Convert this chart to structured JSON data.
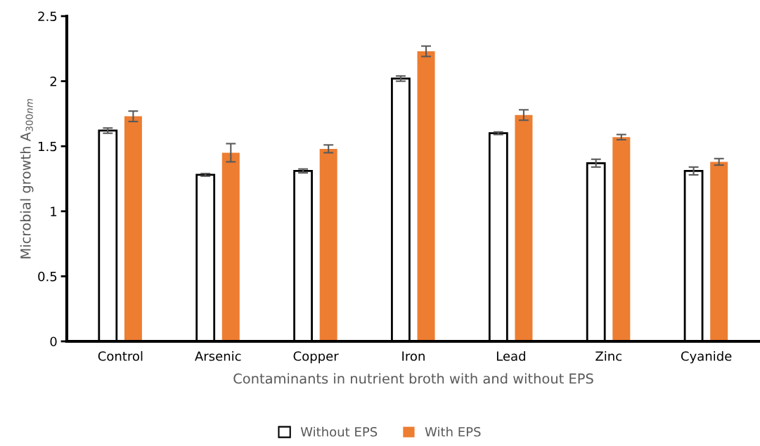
{
  "chart_data": {
    "type": "bar",
    "xlabel": "Contaminants in nutrient broth with and without EPS",
    "ylabel": "Microbial growth A$_{300nm}$",
    "categories": [
      "Control",
      "Arsenic",
      "Copper",
      "Iron",
      "Lead",
      "Zinc",
      "Cyanide"
    ],
    "series": [
      {
        "name": "Without EPS",
        "color": "#ffffff",
        "values": [
          1.62,
          1.28,
          1.31,
          2.02,
          1.6,
          1.37,
          1.31
        ],
        "errors": [
          0.02,
          0.01,
          0.015,
          0.02,
          0.01,
          0.03,
          0.03
        ]
      },
      {
        "name": "With EPS",
        "color": "#ed7d31",
        "values": [
          1.73,
          1.45,
          1.48,
          2.23,
          1.74,
          1.57,
          1.38
        ],
        "errors": [
          0.04,
          0.07,
          0.03,
          0.04,
          0.04,
          0.02,
          0.025
        ]
      }
    ],
    "ylim": [
      0,
      2.5
    ],
    "yticks": [
      0,
      0.5,
      1,
      1.5,
      2,
      2.5
    ],
    "grid": false,
    "legend": "bottom"
  }
}
